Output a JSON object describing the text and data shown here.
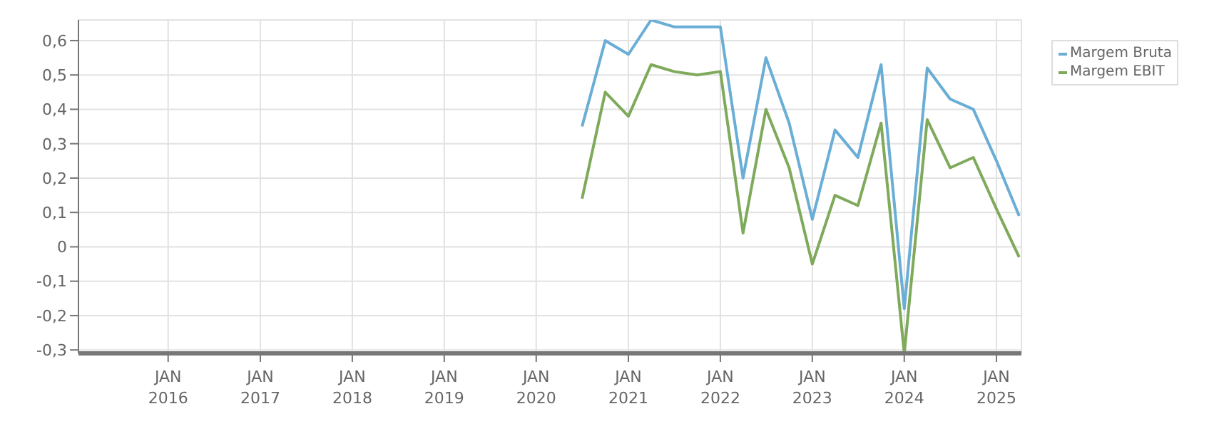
{
  "chart_data": {
    "type": "line",
    "x": [
      "2020-07-01",
      "2020-10-01",
      "2021-01-01",
      "2021-04-01",
      "2021-07-01",
      "2021-10-01",
      "2022-01-01",
      "2022-04-01",
      "2022-07-01",
      "2022-10-01",
      "2023-01-01",
      "2023-04-01",
      "2023-07-01",
      "2023-10-01",
      "2024-01-01",
      "2024-04-01",
      "2024-07-01",
      "2024-10-01",
      "2025-01-01",
      "2025-04-01"
    ],
    "series": [
      {
        "name": "Margem Bruta",
        "color": "#6aaed6",
        "values": [
          0.35,
          0.6,
          0.56,
          0.66,
          0.64,
          0.64,
          0.64,
          0.2,
          0.55,
          0.36,
          0.08,
          0.34,
          0.26,
          0.53,
          -0.18,
          0.52,
          0.43,
          0.4,
          0.25,
          0.09
        ]
      },
      {
        "name": "Margem EBIT",
        "color": "#7faa5c",
        "values": [
          0.14,
          0.45,
          0.38,
          0.53,
          0.51,
          0.5,
          0.51,
          0.04,
          0.4,
          0.23,
          -0.05,
          0.15,
          0.12,
          0.36,
          -0.31,
          0.37,
          0.23,
          0.26,
          0.11,
          -0.03
        ]
      }
    ],
    "xlim": [
      "2015-01-10",
      "2025-04-10"
    ],
    "xticks": [
      {
        "value": "2016-01-01",
        "label": "JAN 2016"
      },
      {
        "value": "2017-01-01",
        "label": "JAN 2017"
      },
      {
        "value": "2018-01-01",
        "label": "JAN 2018"
      },
      {
        "value": "2019-01-01",
        "label": "JAN 2019"
      },
      {
        "value": "2020-01-01",
        "label": "JAN 2020"
      },
      {
        "value": "2021-01-01",
        "label": "JAN 2021"
      },
      {
        "value": "2022-01-01",
        "label": "JAN 2022"
      },
      {
        "value": "2023-01-01",
        "label": "JAN 2023"
      },
      {
        "value": "2024-01-01",
        "label": "JAN 2024"
      },
      {
        "value": "2025-01-01",
        "label": "JAN 2025"
      }
    ],
    "ylim": [
      -0.31,
      0.66
    ],
    "yticks": [
      {
        "value": -0.3,
        "label": "-0,3"
      },
      {
        "value": -0.2,
        "label": "-0,2"
      },
      {
        "value": -0.1,
        "label": "-0,1"
      },
      0,
      {
        "value": 0.1,
        "label": "0,1"
      },
      {
        "value": 0.2,
        "label": "0,2"
      },
      {
        "value": 0.3,
        "label": "0,3"
      },
      {
        "value": 0.4,
        "label": "0,4"
      },
      {
        "value": 0.5,
        "label": "0,5"
      },
      {
        "value": 0.6,
        "label": "0,6"
      }
    ],
    "grid": true,
    "legend": "top right",
    "marker": "none",
    "line_style": "solid"
  }
}
